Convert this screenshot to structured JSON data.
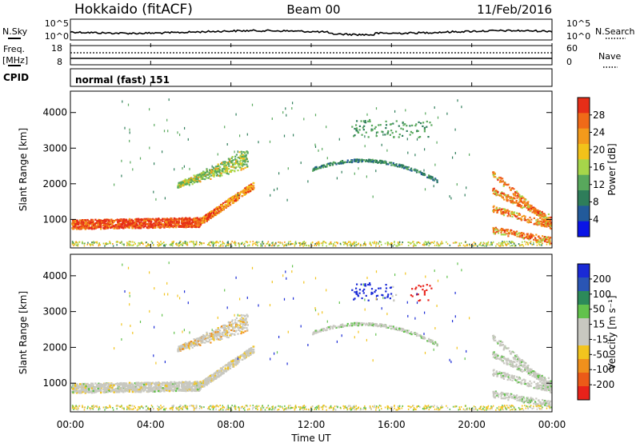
{
  "header": {
    "station": "Hokkaido (fitACF)",
    "beam": "Beam 00",
    "date": "11/Feb/2016"
  },
  "noise_panel": {
    "left_label": "N.Sky",
    "right_label": "N.Search",
    "left_ticks": [
      "10^5",
      "10^0"
    ],
    "right_ticks": [
      "10^5",
      "10^0"
    ]
  },
  "freq_panel": {
    "left_label_1": "Freq.",
    "left_label_2": "[MHz]",
    "right_label": "Nave",
    "left_ticks": [
      "18",
      "8"
    ],
    "right_ticks": [
      "60",
      "0"
    ],
    "freq_mhz": 11.0,
    "nave": 25
  },
  "cpid": {
    "label": "CPID",
    "value": "normal (fast) 151"
  },
  "colors": {
    "power": [
      "#0a14e6",
      "#225a9a",
      "#2e7d5a",
      "#58a85c",
      "#a6d64a",
      "#f2c21a",
      "#f39a1c",
      "#f06a18",
      "#e62e18"
    ],
    "velocity": [
      "#1a2ad6",
      "#2a55b4",
      "#2c8a5a",
      "#62c24c",
      "#c8c8c0",
      "#c8c8c0",
      "#f2c41e",
      "#f0901c",
      "#ec5a18",
      "#e8221a"
    ]
  },
  "chart_data": [
    {
      "type": "heatmap",
      "name": "power",
      "ylabel": "Slant Range [km]",
      "y_ticks": [
        "1000",
        "2000",
        "3000",
        "4000"
      ],
      "ylim": [
        200,
        4600
      ],
      "colorbar_label": "Power [dB]",
      "colorbar_ticks": [
        "4",
        "8",
        "12",
        "16",
        "20",
        "24",
        "28"
      ],
      "colorbar_range": [
        0,
        32
      ],
      "regions": [
        {
          "x_start_h": 0.0,
          "x_end_h": 6.5,
          "y_km": 850,
          "thickness_km": 250,
          "value_db": 26
        },
        {
          "x_start_h": 6.5,
          "x_end_h": 9.0,
          "y_start_km": 900,
          "y_end_km": 1900,
          "value_db": 20
        },
        {
          "x_start_h": 5.5,
          "x_end_h": 8.5,
          "y_start_km": 2000,
          "y_end_km": 2900,
          "value_db": 14
        },
        {
          "x_start_h": 14.0,
          "x_end_h": 18.0,
          "y_km": 2500,
          "value_db": 10
        },
        {
          "x_start_h": 21.0,
          "x_end_h": 24.0,
          "y_start_km": 700,
          "y_end_km": 2400,
          "value_db": 20
        },
        {
          "x_start_h": 0.0,
          "x_end_h": 24.0,
          "y_km": 300,
          "value_db": 18
        }
      ]
    },
    {
      "type": "heatmap",
      "name": "velocity",
      "ylabel": "Slant Range [km]",
      "y_ticks": [
        "1000",
        "2000",
        "3000",
        "4000"
      ],
      "ylim": [
        200,
        4600
      ],
      "colorbar_label": "Velocity [m s⁻¹]",
      "colorbar_ticks": [
        "200",
        "100",
        "50",
        "15",
        "-15",
        "-50",
        "-100",
        "-200"
      ],
      "colorbar_range": [
        -250,
        250
      ],
      "regions": [
        {
          "x_start_h": 0.0,
          "x_end_h": 6.5,
          "y_km": 900,
          "value_ms": 0
        },
        {
          "x_start_h": 14.5,
          "x_end_h": 16.0,
          "y_km": 3600,
          "value_ms": 150
        },
        {
          "x_start_h": 17.0,
          "x_end_h": 18.0,
          "y_km": 3550,
          "value_ms": -220
        }
      ],
      "xlabel": "Time UT",
      "x_ticks": [
        "00:00",
        "04:00",
        "08:00",
        "12:00",
        "16:00",
        "20:00",
        "00:00"
      ],
      "xlim_hours": [
        0,
        24
      ]
    }
  ]
}
